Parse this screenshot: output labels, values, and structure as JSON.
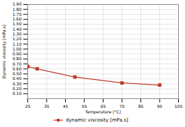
{
  "chart_data": {
    "type": "line",
    "x": [
      25,
      30,
      50,
      75,
      95
    ],
    "series": [
      {
        "name": "dynamic viscosity [mPa.s]",
        "color": "#c0392b",
        "marker": "square",
        "line_style": "solid",
        "values": [
          0.649,
          0.601,
          0.436,
          0.318,
          0.274
        ]
      }
    ],
    "xlabel": "Temperature [°C]",
    "ylabel": "Dynamic viscosity [mPa.s]",
    "xlim": [
      25,
      105
    ],
    "ylim": [
      0.0,
      1.9
    ],
    "xticks": [
      25,
      35,
      45,
      55,
      65,
      75,
      85,
      95,
      105
    ],
    "yticks": [
      {
        "value": 0.1,
        "label": "0.10"
      },
      {
        "value": 0.2,
        "label": "0.20"
      },
      {
        "value": 0.3,
        "label": "0.30"
      },
      {
        "value": 0.4,
        "label": "0.40"
      },
      {
        "value": 0.5,
        "label": "0.50"
      },
      {
        "value": 0.6,
        "label": "0.60"
      },
      {
        "value": 0.7,
        "label": "0.70"
      },
      {
        "value": 0.8,
        "label": "0.80"
      },
      {
        "value": 0.9,
        "label": "0.90"
      },
      {
        "value": 1.0,
        "label": "1.00"
      },
      {
        "value": 1.1,
        "label": "1.10"
      },
      {
        "value": 1.2,
        "label": "1.20"
      },
      {
        "value": 1.3,
        "label": "1.30"
      },
      {
        "value": 1.4,
        "label": "1.40"
      },
      {
        "value": 1.5,
        "label": "1.50"
      },
      {
        "value": 1.6,
        "label": "1.60"
      },
      {
        "value": 1.7,
        "label": "1.70"
      },
      {
        "value": 1.8,
        "label": "1.80"
      },
      {
        "value": 1.9,
        "label": "1.90"
      }
    ],
    "grid": true,
    "legend": "bottom"
  }
}
